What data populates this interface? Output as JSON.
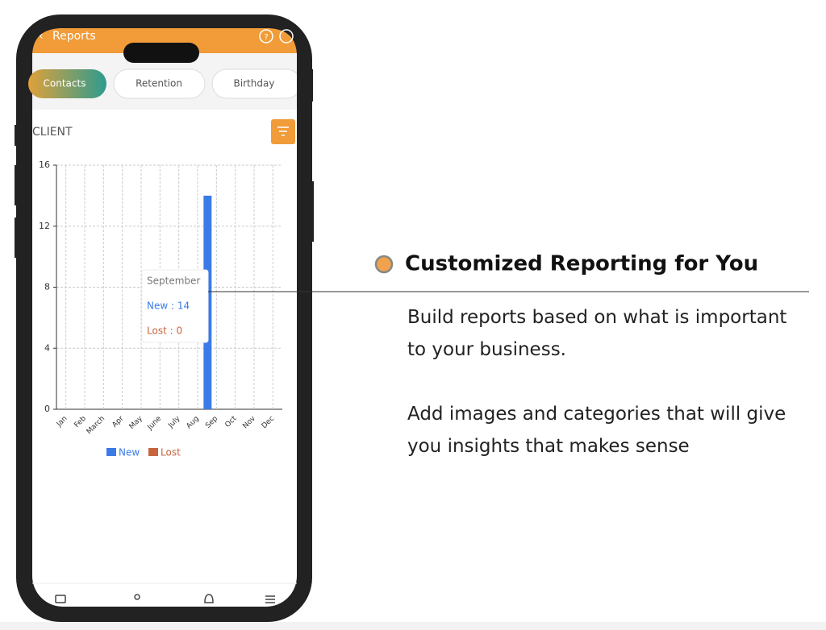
{
  "app": {
    "title": "Reports",
    "tabs": [
      "Contacts",
      "Retention",
      "Birthday"
    ],
    "section_title": "CLIENT"
  },
  "chart_data": {
    "type": "bar",
    "categories": [
      "Jan",
      "Feb",
      "March",
      "Apr",
      "May",
      "June",
      "July",
      "Aug",
      "Sep",
      "Oct",
      "Nov",
      "Dec"
    ],
    "series": [
      {
        "name": "New",
        "color": "#3b7be8",
        "values": [
          0,
          0,
          0,
          0,
          0,
          0,
          0,
          0,
          14,
          0,
          0,
          0
        ]
      },
      {
        "name": "Lost",
        "color": "#c8653f",
        "values": [
          0,
          0,
          0,
          0,
          0,
          0,
          0,
          0,
          0,
          0,
          0,
          0
        ]
      }
    ],
    "ylim": [
      0,
      16
    ],
    "yticks": [
      0,
      4,
      8,
      12,
      16
    ],
    "grid": true,
    "tooltip": {
      "title": "September",
      "lines": [
        "New : 14",
        "Lost : 0"
      ]
    }
  },
  "feature": {
    "title": "Customized Reporting for You",
    "paragraphs": [
      "Build reports based on what is important to your business.",
      "Add images and categories that will give you insights that makes sense"
    ]
  }
}
